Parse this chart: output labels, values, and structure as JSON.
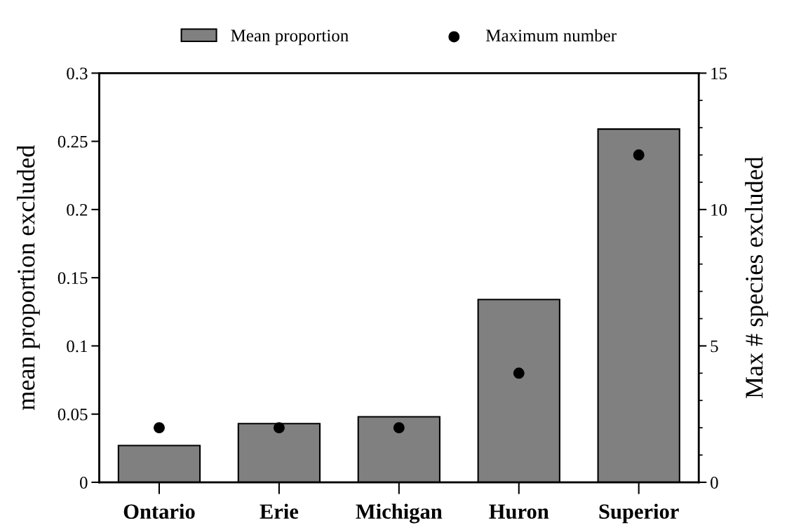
{
  "chart_data": {
    "type": "bar",
    "categories": [
      "Ontario",
      "Erie",
      "Michigan",
      "Huron",
      "Superior"
    ],
    "ylabel": "mean proportion excluded",
    "y2label": "Max # species excluded",
    "series": [
      {
        "name": "Mean proportion",
        "color": "#808080",
        "values": [
          0.027,
          0.043,
          0.048,
          0.134,
          0.259
        ]
      },
      {
        "name": "Maximum number",
        "type": "scatter",
        "axis": "y2",
        "color": "#000000",
        "marker": "circle",
        "values": [
          2,
          2,
          2,
          4,
          12
        ]
      }
    ],
    "ylim": [
      0,
      0.3
    ],
    "yticks": [
      0,
      0.05,
      0.1,
      0.15,
      0.2,
      0.25,
      0.3
    ],
    "y2lim": [
      0,
      15
    ],
    "y2ticks": [
      0,
      5,
      10,
      15
    ],
    "grid": false,
    "legend": "top"
  }
}
